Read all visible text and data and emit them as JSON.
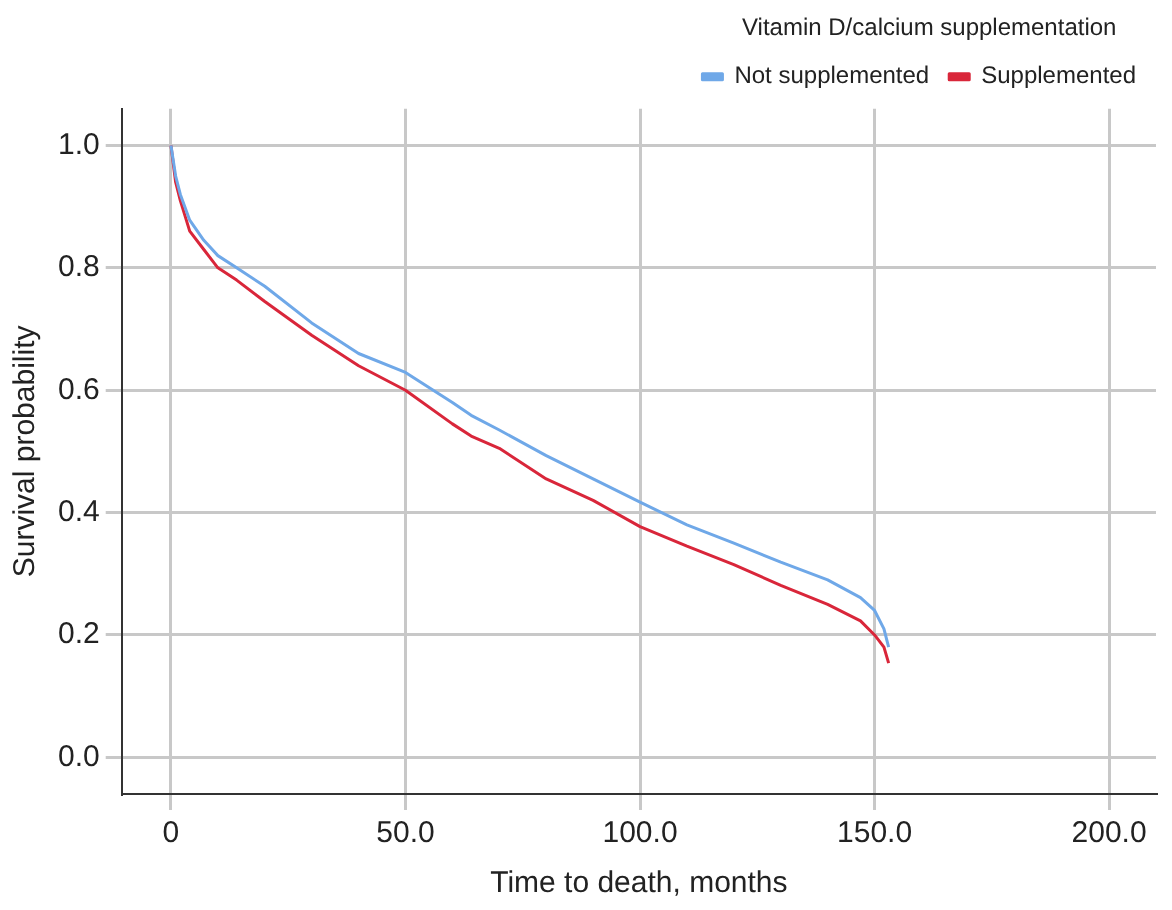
{
  "chart_data": {
    "type": "line",
    "xlabel": "Time to death, months",
    "ylabel": "Survival probability",
    "legend_title": "Vitamin D/calcium supplementation",
    "x": [
      0,
      1,
      2,
      4,
      7,
      10,
      14,
      20,
      30,
      40,
      50,
      60,
      64,
      70,
      80,
      90,
      100,
      110,
      120,
      130,
      140,
      147,
      150,
      152,
      153
    ],
    "series": [
      {
        "name": "Not supplemented",
        "color": "#6fa8e8",
        "values": [
          1.0,
          0.95,
          0.92,
          0.878,
          0.845,
          0.82,
          0.8,
          0.77,
          0.71,
          0.66,
          0.629,
          0.58,
          0.559,
          0.535,
          0.493,
          0.455,
          0.417,
          0.38,
          0.35,
          0.319,
          0.29,
          0.261,
          0.24,
          0.21,
          0.18
        ]
      },
      {
        "name": "Supplemented",
        "color": "#d9263a",
        "values": [
          1.0,
          0.94,
          0.91,
          0.86,
          0.83,
          0.8,
          0.78,
          0.745,
          0.69,
          0.64,
          0.6,
          0.545,
          0.525,
          0.505,
          0.455,
          0.42,
          0.377,
          0.345,
          0.315,
          0.281,
          0.25,
          0.223,
          0.2,
          0.18,
          0.154
        ]
      }
    ],
    "xlim": [
      -10.5,
      210
    ],
    "xticks": [
      0,
      {
        "value": 50,
        "label": "50.0"
      },
      {
        "value": 100,
        "label": "100.0"
      },
      {
        "value": 150,
        "label": "150.0"
      },
      {
        "value": 200,
        "label": "200.0"
      }
    ],
    "ylim": [
      -0.06,
      1.06
    ],
    "yticks": [
      {
        "value": 0,
        "label": "0.0"
      },
      0.2,
      0.4,
      0.6,
      0.8,
      {
        "value": 1,
        "label": "1.0"
      }
    ],
    "grid": true,
    "legend": "top right",
    "marker": "none",
    "line_style": "solid"
  }
}
